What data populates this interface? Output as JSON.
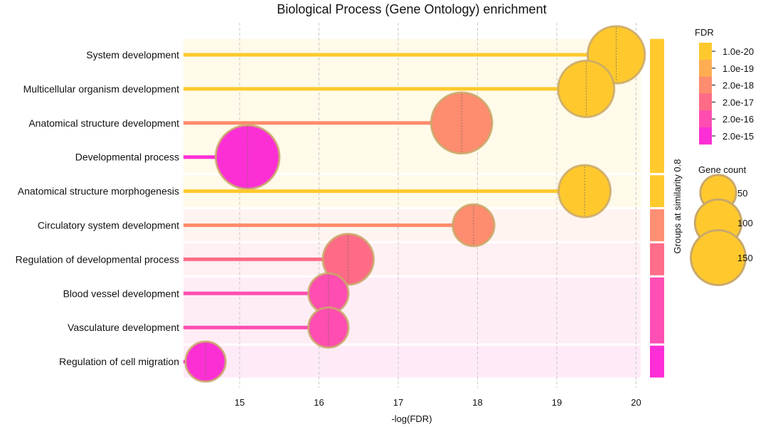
{
  "chart_data": {
    "type": "scatter",
    "title": "Biological Process (Gene Ontology) enrichment",
    "xlabel": "-log(FDR)",
    "xlim": [
      14.3,
      20.05
    ],
    "xticks": [
      15,
      16,
      17,
      18,
      19,
      20
    ],
    "grid": "vertical dashed",
    "categories": [
      "System development",
      "Multicellular organism development",
      "Anatomical structure development",
      "Developmental process",
      "Anatomical structure morphogenesis",
      "Circulatory system development",
      "Regulation of developmental process",
      "Blood vessel development",
      "Vasculature development",
      "Regulation of cell migration"
    ],
    "values": [
      19.75,
      19.37,
      17.8,
      15.1,
      19.35,
      17.95,
      16.37,
      16.12,
      16.12,
      14.57
    ],
    "gene_counts": [
      115,
      110,
      135,
      150,
      90,
      50,
      85,
      45,
      45,
      45
    ],
    "colors": [
      "#ffc92d",
      "#ffc92d",
      "#fe8c6e",
      "#fc2fd5",
      "#ffc92d",
      "#fe8c6e",
      "#fe6b86",
      "#ff4db1",
      "#ff4db1",
      "#fc2fd5"
    ],
    "groups": [
      {
        "rows": [
          0,
          3
        ],
        "band_color": "#fffae9",
        "bar_color": "#ffca2e"
      },
      {
        "rows": [
          4,
          4
        ],
        "band_color": "#fffae9",
        "bar_color": "#ffca2e"
      },
      {
        "rows": [
          5,
          5
        ],
        "band_color": "#fff4f0",
        "bar_color": "#fd8f72"
      },
      {
        "rows": [
          6,
          6
        ],
        "band_color": "#fff0f3",
        "bar_color": "#fe6d89"
      },
      {
        "rows": [
          7,
          8
        ],
        "band_color": "#ffedf6",
        "bar_color": "#fe4fb4"
      },
      {
        "rows": [
          9,
          9
        ],
        "band_color": "#ffebf7",
        "bar_color": "#fd2ed5"
      }
    ],
    "group_axis_label": "Groups at similarity 0.8",
    "legend": {
      "fdr_title": "FDR",
      "fdr_labels": [
        "1.0e-20",
        "1.0e-19",
        "2.0e-18",
        "2.0e-17",
        "2.0e-16",
        "2.0e-15"
      ],
      "fdr_colors": [
        "#ffc92d",
        "#ffad52",
        "#fe8c6e",
        "#fe6b86",
        "#ff4db1",
        "#fc2fd5"
      ],
      "size_title": "Gene count",
      "size_labels": [
        "50",
        "100",
        "150"
      ],
      "size_values": [
        50,
        100,
        150
      ],
      "size_color": "#ffc92d",
      "placement": "right"
    }
  }
}
